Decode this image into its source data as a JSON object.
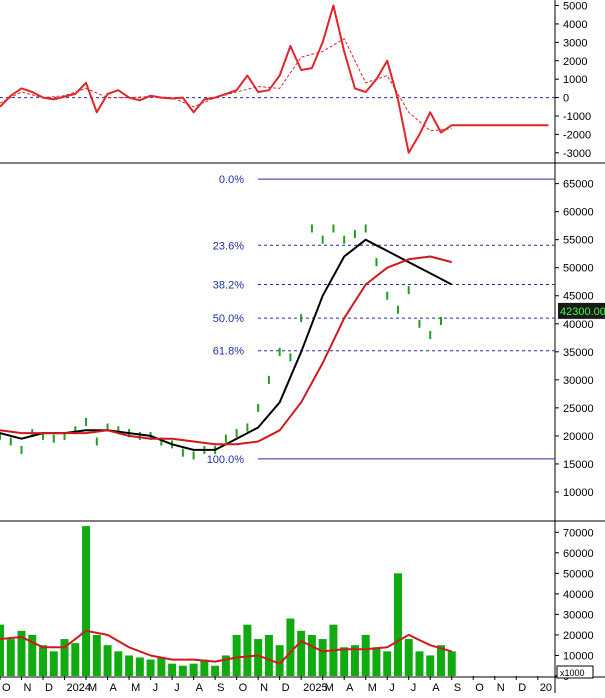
{
  "chart_data": [
    {
      "type": "line",
      "panel": "macd",
      "y_axis_position": "right",
      "yticks": [
        5000,
        4000,
        3000,
        2000,
        1000,
        0,
        -1000,
        -2000,
        -3000
      ],
      "ytick_labels": [
        "5000",
        "4000",
        "3000",
        "2000",
        "1000",
        "0",
        "-1000",
        "-2000",
        "-3000"
      ],
      "ylim": [
        -3500,
        5300
      ],
      "reference_lines": [
        0
      ],
      "series": [
        {
          "style": "solid",
          "color": "#e0252b",
          "x": [
            0.0,
            0.5,
            1.0,
            1.5,
            2.0,
            2.5,
            3.0,
            3.5,
            4.0,
            4.5,
            5.0,
            5.5,
            6.0,
            6.5,
            7.0,
            7.5,
            8.0,
            8.5,
            9.0,
            9.5,
            10.0,
            10.5,
            11.0,
            11.5,
            12.0,
            12.5,
            13.0,
            13.5,
            14.0,
            14.5,
            15.0,
            15.5,
            16.0,
            16.5,
            17.0,
            17.5,
            18.0,
            18.5,
            19.0,
            19.5,
            20.0,
            20.5,
            21.0,
            21.5,
            22.0,
            22.5,
            23.0,
            23.5,
            24.0,
            24.5,
            25.0,
            25.5
          ],
          "values": [
            -500,
            100,
            500,
            300,
            0,
            -100,
            50,
            200,
            800,
            -800,
            200,
            400,
            0,
            -150,
            100,
            0,
            -50,
            0,
            -800,
            -100,
            0,
            200,
            400,
            1200,
            300,
            400,
            1200,
            2800,
            1500,
            1600,
            3000,
            5000,
            2500,
            500,
            300,
            1000,
            2000,
            -100,
            -3000,
            -2000,
            -800,
            -1900,
            -1500,
            -1500,
            -1500,
            -1500,
            -1500,
            -1500,
            -1500,
            -1500,
            -1500,
            -1500
          ]
        },
        {
          "style": "dashed",
          "color": "#e0252b",
          "x": [
            0.0,
            1.0,
            2.0,
            3.0,
            4.0,
            5.0,
            6.0,
            7.0,
            8.0,
            9.0,
            10.0,
            11.0,
            12.0,
            13.0,
            14.0,
            15.0,
            16.0,
            17.0,
            18.0,
            19.0,
            20.0,
            21.0
          ],
          "values": [
            -300,
            300,
            0,
            100,
            500,
            0,
            0,
            50,
            0,
            -500,
            0,
            300,
            600,
            500,
            2200,
            2500,
            3200,
            800,
            1200,
            -800,
            -1800,
            -1700
          ]
        }
      ],
      "x_range": [
        0,
        25.8
      ]
    },
    {
      "type": "line",
      "panel": "price",
      "y_axis_position": "right",
      "yticks": [
        65000,
        60000,
        55000,
        50000,
        45000,
        40000,
        35000,
        30000,
        25000,
        20000,
        15000,
        10000
      ],
      "ytick_labels": [
        "65000",
        "60000",
        "55000",
        "50000",
        "45000",
        "40000",
        "35000",
        "30000",
        "25000",
        "20000",
        "15000",
        "10000"
      ],
      "ylim": [
        5000,
        68500
      ],
      "last_price_label": "42300.00",
      "last_price": 42300,
      "fibonacci": {
        "levels": [
          {
            "label": "0.0%",
            "value": 65800
          },
          {
            "label": "23.6%",
            "value": 54000
          },
          {
            "label": "38.2%",
            "value": 47000
          },
          {
            "label": "50.0%",
            "value": 41000
          },
          {
            "label": "61.8%",
            "value": 35200
          },
          {
            "label": "100.0%",
            "value": 15900
          }
        ]
      },
      "series": [
        {
          "style": "candles",
          "color": "#1ea01e",
          "x": [
            0.0,
            0.5,
            1.0,
            1.5,
            2.0,
            2.5,
            3.0,
            3.5,
            4.0,
            4.5,
            5.0,
            5.5,
            6.0,
            6.5,
            7.0,
            7.5,
            8.0,
            8.5,
            9.0,
            9.5,
            10.0,
            10.5,
            11.0,
            11.5,
            12.0,
            12.5,
            13.0,
            13.5,
            14.0,
            14.5,
            15.0,
            15.5,
            16.0,
            16.5,
            17.0,
            17.5,
            18.0,
            18.5,
            19.0,
            19.5,
            20.0,
            20.5,
            21.0
          ],
          "values": [
            20000,
            19000,
            17500,
            20500,
            20000,
            19500,
            20000,
            21000,
            22500,
            19000,
            21500,
            21000,
            20500,
            20000,
            20000,
            19000,
            18500,
            17000,
            16500,
            17500,
            17500,
            19500,
            20500,
            21500,
            25000,
            30000,
            35000,
            34000,
            41000,
            57000,
            55000,
            57000,
            55000,
            56000,
            57000,
            51000,
            45000,
            42500,
            46000,
            40000,
            38000,
            40500,
            42300
          ]
        },
        {
          "style": "solid",
          "color": "#000000",
          "x": [
            0.0,
            1.0,
            2.0,
            3.0,
            4.0,
            5.0,
            6.0,
            7.0,
            8.0,
            9.0,
            10.0,
            11.0,
            12.0,
            13.0,
            14.0,
            15.0,
            16.0,
            17.0,
            18.0,
            19.0,
            20.0,
            21.0
          ],
          "values": [
            20500,
            19500,
            20500,
            20500,
            21000,
            21000,
            20500,
            20000,
            18500,
            17500,
            17500,
            19500,
            21500,
            26000,
            35000,
            45000,
            52000,
            55000,
            53000,
            51000,
            49000,
            47000
          ]
        },
        {
          "style": "solid",
          "color": "#d0191e",
          "x": [
            0.0,
            1.0,
            2.0,
            3.0,
            4.0,
            5.0,
            6.0,
            7.0,
            8.0,
            9.0,
            10.0,
            11.0,
            12.0,
            13.0,
            14.0,
            15.0,
            16.0,
            17.0,
            18.0,
            19.0,
            20.0,
            21.0
          ],
          "values": [
            21000,
            20500,
            20500,
            20500,
            20500,
            21000,
            20000,
            19500,
            19500,
            19000,
            18500,
            18500,
            19000,
            21000,
            26000,
            33000,
            41000,
            47000,
            50000,
            51500,
            52000,
            51000
          ]
        }
      ],
      "x_range": [
        0,
        25.8
      ]
    },
    {
      "type": "bar",
      "panel": "volume",
      "y_axis_position": "right",
      "yticks": [
        70000,
        60000,
        50000,
        40000,
        30000,
        20000,
        10000,
        0
      ],
      "ytick_labels": [
        "70000",
        "60000",
        "50000",
        "40000",
        "30000",
        "20000",
        "10000",
        "0"
      ],
      "ylim": [
        0,
        75000
      ],
      "unit_label": "x1000",
      "series": [
        {
          "style": "bars",
          "color": "#11aa11",
          "x": [
            0.0,
            0.5,
            1.0,
            1.5,
            2.0,
            2.5,
            3.0,
            3.5,
            4.0,
            4.5,
            5.0,
            5.5,
            6.0,
            6.5,
            7.0,
            7.5,
            8.0,
            8.5,
            9.0,
            9.5,
            10.0,
            10.5,
            11.0,
            11.5,
            12.0,
            12.5,
            13.0,
            13.5,
            14.0,
            14.5,
            15.0,
            15.5,
            16.0,
            16.5,
            17.0,
            17.5,
            18.0,
            18.5,
            19.0,
            19.5,
            20.0,
            20.5,
            21.0
          ],
          "values": [
            25000,
            18000,
            22000,
            20000,
            15000,
            12000,
            18000,
            16000,
            73000,
            20000,
            15000,
            12000,
            10000,
            9000,
            8000,
            9000,
            6000,
            5000,
            6000,
            8000,
            5000,
            10000,
            20000,
            25000,
            18000,
            20000,
            15000,
            28000,
            22000,
            20000,
            18000,
            25000,
            14000,
            15000,
            20000,
            14000,
            12000,
            50000,
            18000,
            12000,
            10000,
            15000,
            12000
          ]
        },
        {
          "style": "solid",
          "color": "#d0191e",
          "x": [
            0.0,
            1.0,
            2.0,
            3.0,
            4.0,
            5.0,
            6.0,
            7.0,
            8.0,
            9.0,
            10.0,
            11.0,
            12.0,
            13.0,
            14.0,
            15.0,
            16.0,
            17.0,
            18.0,
            19.0,
            20.0,
            21.0
          ],
          "values": [
            18000,
            19000,
            14000,
            14000,
            22000,
            20000,
            14000,
            10000,
            8000,
            8000,
            7000,
            9000,
            10000,
            6000,
            17000,
            12000,
            13000,
            13000,
            14000,
            20000,
            15000,
            12000
          ]
        }
      ],
      "x_range": [
        0,
        25.8
      ]
    }
  ],
  "x_axis": {
    "tick_labels": [
      "O",
      "N",
      "D",
      "2024",
      "M",
      "A",
      "M",
      "J",
      "J",
      "A",
      "S",
      "O",
      "N",
      "D",
      "2025",
      "M",
      "A",
      "M",
      "J",
      "J",
      "A",
      "S",
      "O",
      "N",
      "D",
      "20"
    ],
    "tick_positions": [
      0.0,
      1.0,
      2.0,
      3.0,
      4.0,
      5.0,
      6.0,
      7.0,
      8.0,
      9.0,
      10.0,
      11.0,
      12.0,
      13.0,
      14.0,
      15.0,
      16.0,
      17.0,
      18.0,
      19.0,
      20.0,
      21.0,
      22.0,
      23.0,
      24.0,
      25.0
    ]
  }
}
